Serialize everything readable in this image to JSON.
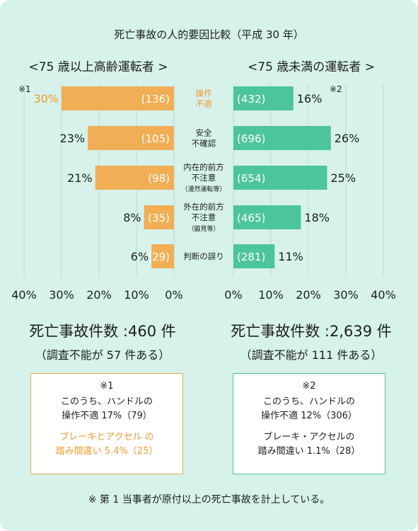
{
  "title": "死亡事故の人的要因比較（平成 30 年）",
  "colors": {
    "background": "#d6f2ea",
    "left_bar": "#f1ae55",
    "right_bar": "#4dc59c",
    "highlight": "#ed9b2f"
  },
  "chart_data": {
    "type": "bar",
    "orientation": "horizontal-butterfly",
    "categories": [
      {
        "lines": [
          "操作",
          "不適"
        ],
        "highlight": true
      },
      {
        "lines": [
          "安全",
          "不確認"
        ]
      },
      {
        "lines": [
          "内在的前方",
          "不注意",
          "（漫然運転等）"
        ]
      },
      {
        "lines": [
          "外在的前方",
          "不注意",
          "（脇見等）"
        ]
      },
      {
        "lines": [
          "判断の誤り"
        ]
      }
    ],
    "series": [
      {
        "name": "<75 歳以上高齢運転者 >",
        "values": [
          30,
          23,
          21,
          8,
          6
        ],
        "labels": [
          "30%",
          "23%",
          "21%",
          "8%",
          "6%"
        ],
        "counts": [
          "(136)",
          "(105)",
          "(98)",
          "(35)",
          "(29)"
        ],
        "note_mark": "※1"
      },
      {
        "name": "<75 歳未満の運転者 >",
        "values": [
          16,
          26,
          25,
          18,
          11
        ],
        "labels": [
          "16%",
          "26%",
          "25%",
          "18%",
          "11%"
        ],
        "counts": [
          "(432)",
          "(696)",
          "(654)",
          "(465)",
          "(281)"
        ],
        "note_mark": "※2"
      }
    ],
    "xlim": [
      0,
      40
    ],
    "left_ticks": [
      "40%",
      "30%",
      "20%",
      "10%",
      "0%"
    ],
    "right_ticks": [
      "0%",
      "10%",
      "20%",
      "30%",
      "40%"
    ],
    "grid": true
  },
  "totals": {
    "left": {
      "count": "死亡事故件数 :460 件",
      "unknown": "（調査不能が 57 件ある）"
    },
    "right": {
      "count": "死亡事故件数 :2,639 件",
      "unknown": "（調査不能が 111 件ある）"
    }
  },
  "notes": {
    "left": {
      "mark": "※1",
      "line1": "このうち、ハンドルの",
      "line2": "操作不適 17%（79）",
      "line3": "ブレーキとアクセル の",
      "line4": "踏み間違い 5.4%（25）"
    },
    "right": {
      "mark": "※2",
      "line1": "このうち、ハンドルの",
      "line2": "操作不適 12%（306）",
      "line3": "ブレーキ・アクセルの",
      "line4": "踏み間違い 1.1%（28）"
    }
  },
  "footnote": "※ 第 1 当事者が原付以上の死亡事故を計上している。"
}
